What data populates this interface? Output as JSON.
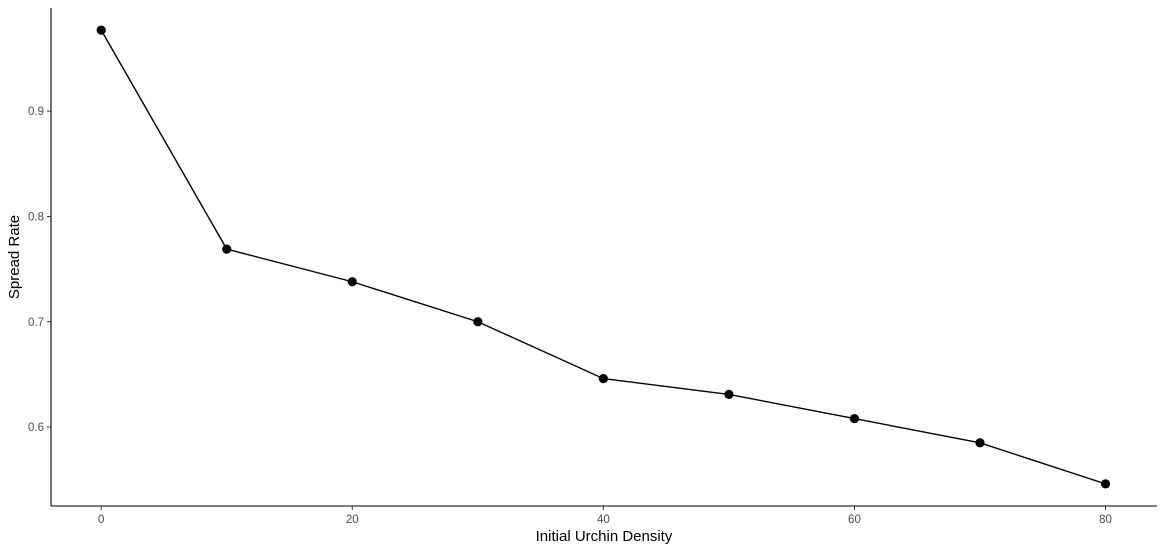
{
  "chart_data": {
    "type": "line",
    "title": "",
    "xlabel": "Initial Urchin Density",
    "ylabel": "Spread Rate",
    "x": [
      0,
      10,
      20,
      30,
      40,
      50,
      60,
      70,
      80
    ],
    "series": [
      {
        "values": [
          0.977,
          0.769,
          0.738,
          0.7,
          0.646,
          0.631,
          0.608,
          0.585,
          0.546
        ]
      }
    ],
    "xticks": [
      0,
      20,
      40,
      60,
      80
    ],
    "yticks": [
      0.6,
      0.7,
      0.8,
      0.9
    ],
    "xtick_labels": [
      "0",
      "20",
      "40",
      "60",
      "80"
    ],
    "ytick_labels": [
      "0.6",
      "0.7",
      "0.8",
      "0.9"
    ],
    "xlim": [
      -4,
      84.1
    ],
    "ylim": [
      0.525,
      0.998
    ],
    "grid": false,
    "line_color": "#000000",
    "point_color": "#000000"
  }
}
